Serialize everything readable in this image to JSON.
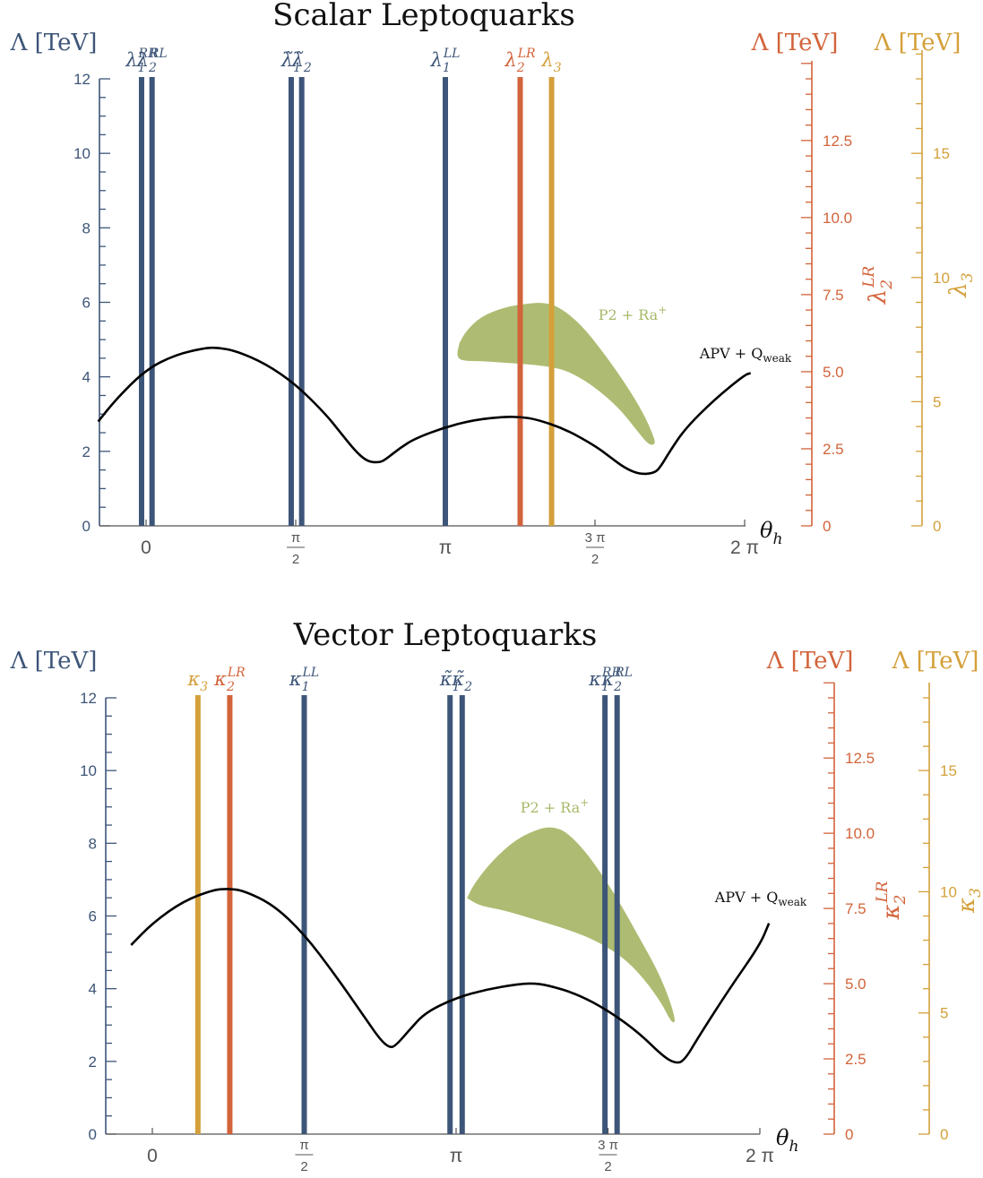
{
  "colors": {
    "blue": "#3d5578",
    "orange": "#d2633a",
    "gold": "#d4a03a",
    "green": "#adbc72",
    "black": "#000000",
    "axis_gray": "#555555"
  },
  "chart_data": [
    {
      "type": "line",
      "title": "Scalar Leptoquarks",
      "xlabel": "θh",
      "xlim_units": "multiples of pi",
      "x_ticks": [
        {
          "label": "0",
          "value": 0
        },
        {
          "label": "π/2",
          "num": "π",
          "den": "2",
          "value": 0.5
        },
        {
          "label": "π",
          "value": 1
        },
        {
          "label": "3π/2",
          "num": "3 π",
          "den": "2",
          "value": 1.5
        },
        {
          "label": "2 π",
          "value": 2
        }
      ],
      "axes": [
        {
          "label": "Λ [TeV]",
          "ticks": [
            "0",
            "2",
            "4",
            "6",
            "8",
            "10",
            "12"
          ],
          "ylim": [
            0,
            12
          ],
          "color": "blue"
        },
        {
          "label": "Λ [TeV]",
          "ticks": [
            "0",
            "2.5",
            "5.0",
            "7.5",
            "10.0",
            "12.5"
          ],
          "ylim": [
            0,
            14.5
          ],
          "color": "orange",
          "param_base": "λ",
          "param_sub": "2",
          "param_sup": "LR"
        },
        {
          "label": "Λ [TeV]",
          "ticks": [
            "0",
            "5",
            "10",
            "15"
          ],
          "ylim": [
            0,
            18
          ],
          "color": "gold",
          "param_base": "λ",
          "param_sub": "3",
          "param_sup": ""
        }
      ],
      "vlines": [
        {
          "base": "λ",
          "sub": "1",
          "sup": "RR",
          "tilde": false,
          "x": -0.015,
          "color": "blue"
        },
        {
          "base": "λ",
          "sub": "2",
          "sup": "RL",
          "tilde": false,
          "x": 0.02,
          "color": "blue"
        },
        {
          "base": "λ",
          "sub": "1",
          "sup": "",
          "tilde": true,
          "x": 0.485,
          "color": "blue"
        },
        {
          "base": "λ",
          "sub": "2",
          "sup": "",
          "tilde": true,
          "x": 0.52,
          "color": "blue"
        },
        {
          "base": "λ",
          "sub": "1",
          "sup": "LL",
          "tilde": false,
          "x": 1.0,
          "color": "blue"
        },
        {
          "base": "λ",
          "sub": "2",
          "sup": "LR",
          "tilde": false,
          "x": 1.25,
          "color": "orange"
        },
        {
          "base": "λ",
          "sub": "3",
          "sup": "",
          "tilde": false,
          "x": 1.355,
          "color": "gold"
        }
      ],
      "curve": {
        "name": "APV + Qweak",
        "x": [
          -0.16,
          -0.1,
          0,
          0.1,
          0.2,
          0.24,
          0.3,
          0.4,
          0.5,
          0.6,
          0.65,
          0.7,
          0.74,
          0.78,
          0.8,
          0.85,
          0.9,
          1.0,
          1.1,
          1.2,
          1.25,
          1.3,
          1.4,
          1.5,
          1.55,
          1.6,
          1.65,
          1.7,
          1.72,
          1.75,
          1.8,
          1.9,
          2.0,
          2.02
        ],
        "y": [
          2.8,
          3.4,
          4.2,
          4.6,
          4.78,
          4.78,
          4.7,
          4.35,
          3.8,
          3.0,
          2.5,
          2.0,
          1.72,
          1.7,
          1.78,
          2.1,
          2.35,
          2.65,
          2.85,
          2.93,
          2.92,
          2.87,
          2.6,
          2.15,
          1.85,
          1.55,
          1.38,
          1.42,
          1.6,
          2.0,
          2.6,
          3.4,
          4.05,
          4.1
        ]
      },
      "region": {
        "name": "P2 + Ra+",
        "outline_x": [
          1.05,
          1.07,
          1.12,
          1.2,
          1.28,
          1.33,
          1.38,
          1.45,
          1.52,
          1.6,
          1.66,
          1.69,
          1.7,
          1.68,
          1.64,
          1.58,
          1.5,
          1.43,
          1.38,
          1.3,
          1.2,
          1.12,
          1.06,
          1.04,
          1.05
        ],
        "outline_y": [
          4.9,
          5.2,
          5.6,
          5.85,
          5.95,
          5.97,
          5.85,
          5.4,
          4.7,
          3.8,
          3.0,
          2.45,
          2.2,
          2.2,
          2.6,
          3.2,
          3.75,
          4.1,
          4.25,
          4.35,
          4.4,
          4.45,
          4.45,
          4.55,
          4.9
        ]
      }
    },
    {
      "type": "line",
      "title": "Vector Leptoquarks",
      "xlabel": "θh",
      "xlim_units": "multiples of pi",
      "x_ticks": [
        {
          "label": "0",
          "value": 0
        },
        {
          "label": "π/2",
          "num": "π",
          "den": "2",
          "value": 0.5
        },
        {
          "label": "π",
          "value": 1
        },
        {
          "label": "3π/2",
          "num": "3 π",
          "den": "2",
          "value": 1.5
        },
        {
          "label": "2 π",
          "value": 2
        }
      ],
      "axes": [
        {
          "label": "Λ [TeV]",
          "ticks": [
            "0",
            "2",
            "4",
            "6",
            "8",
            "10",
            "12"
          ],
          "ylim": [
            0,
            12
          ],
          "color": "blue"
        },
        {
          "label": "Λ [TeV]",
          "ticks": [
            "0",
            "2.5",
            "5.0",
            "7.5",
            "10.0",
            "12.5"
          ],
          "ylim": [
            0,
            14.5
          ],
          "color": "orange",
          "param_base": "κ",
          "param_sub": "2",
          "param_sup": "LR"
        },
        {
          "label": "Λ [TeV]",
          "ticks": [
            "0",
            "5",
            "10",
            "15"
          ],
          "ylim": [
            0,
            18
          ],
          "color": "gold",
          "param_base": "κ",
          "param_sub": "3",
          "param_sup": ""
        }
      ],
      "vlines": [
        {
          "base": "κ",
          "sub": "3",
          "sup": "",
          "tilde": false,
          "x": 0.15,
          "color": "gold"
        },
        {
          "base": "κ",
          "sub": "2",
          "sup": "LR",
          "tilde": false,
          "x": 0.255,
          "color": "orange"
        },
        {
          "base": "κ",
          "sub": "1",
          "sup": "LL",
          "tilde": false,
          "x": 0.5,
          "color": "blue"
        },
        {
          "base": "κ",
          "sub": "1",
          "sup": "",
          "tilde": true,
          "x": 0.98,
          "color": "blue"
        },
        {
          "base": "κ",
          "sub": "2",
          "sup": "",
          "tilde": true,
          "x": 1.02,
          "color": "blue"
        },
        {
          "base": "κ",
          "sub": "1",
          "sup": "RR",
          "tilde": false,
          "x": 1.49,
          "color": "blue"
        },
        {
          "base": "κ",
          "sub": "2",
          "sup": "RL",
          "tilde": false,
          "x": 1.53,
          "color": "blue"
        }
      ],
      "curve": {
        "name": "APV + Qweak",
        "x": [
          -0.07,
          0,
          0.1,
          0.2,
          0.25,
          0.3,
          0.4,
          0.5,
          0.6,
          0.7,
          0.75,
          0.78,
          0.8,
          0.85,
          0.9,
          1.0,
          1.1,
          1.2,
          1.25,
          1.3,
          1.4,
          1.5,
          1.6,
          1.68,
          1.72,
          1.75,
          1.8,
          1.9,
          2.0,
          2.03
        ],
        "y": [
          5.2,
          5.8,
          6.4,
          6.72,
          6.75,
          6.7,
          6.3,
          5.5,
          4.4,
          3.2,
          2.6,
          2.38,
          2.42,
          2.9,
          3.35,
          3.75,
          3.98,
          4.12,
          4.15,
          4.1,
          3.85,
          3.4,
          2.8,
          2.15,
          1.95,
          2.0,
          2.7,
          4.0,
          5.2,
          5.8
        ]
      },
      "region": {
        "name": "P2 + Ra+",
        "outline_x": [
          1.04,
          1.06,
          1.12,
          1.2,
          1.28,
          1.32,
          1.36,
          1.42,
          1.48,
          1.54,
          1.6,
          1.66,
          1.7,
          1.72,
          1.71,
          1.68,
          1.62,
          1.55,
          1.45,
          1.35,
          1.25,
          1.15,
          1.08,
          1.04
        ],
        "outline_y": [
          6.5,
          6.85,
          7.5,
          8.1,
          8.4,
          8.42,
          8.3,
          7.8,
          7.1,
          6.3,
          5.4,
          4.5,
          3.7,
          3.1,
          3.1,
          3.6,
          4.3,
          4.9,
          5.4,
          5.7,
          5.95,
          6.2,
          6.3,
          6.5
        ]
      }
    }
  ]
}
